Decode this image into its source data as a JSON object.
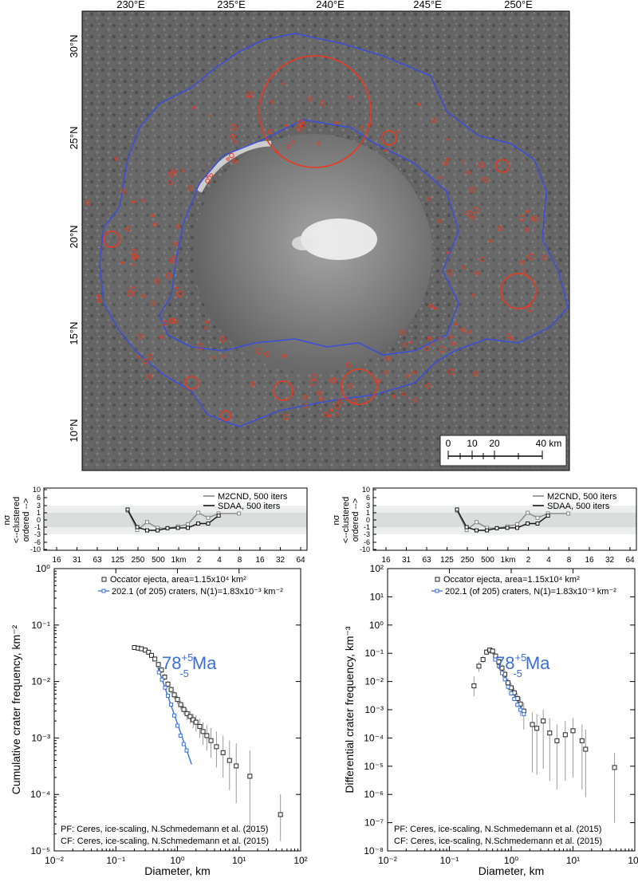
{
  "map": {
    "lon_labels": [
      "230°E",
      "235°E",
      "240°E",
      "245°E",
      "250°E"
    ],
    "lat_labels": [
      "30°N",
      "25°N",
      "20°N",
      "15°N",
      "10°N"
    ],
    "scalebar": {
      "labels": [
        "0",
        "10",
        "20",
        "40 km"
      ]
    },
    "colors": {
      "boundary": "#3b4fd6",
      "crater": "#e83a1e",
      "surface_dark": "#4a4a4a",
      "surface_light": "#8c8c8c",
      "bright_spot": "#f2f2f2"
    }
  },
  "chart_data": [
    {
      "type": "line",
      "panel": "randomness-left",
      "ylabel_lines": [
        "nσ",
        "<--clustered",
        "ordered -->"
      ],
      "x_ticks": [
        "16",
        "31",
        "63",
        "125",
        "250",
        "500",
        "1km",
        "2",
        "4",
        "8",
        "16",
        "32",
        "64"
      ],
      "y_ticks": [
        "10",
        "6",
        "3",
        "1",
        "0",
        "-1",
        "-3",
        "-6",
        "-10"
      ],
      "legend": [
        "M2CND, 500 iters",
        "SDAA, 500 iters"
      ],
      "series": [
        {
          "name": "M2CND, 500 iters",
          "color": "#888888",
          "x": [
            0.18,
            0.25,
            0.35,
            0.5,
            0.7,
            1.0,
            1.4,
            2.0,
            2.8,
            4.0,
            8.0
          ],
          "y": [
            1.6,
            -1.8,
            -0.3,
            -1.2,
            -1.3,
            -0.9,
            -0.6,
            1.0,
            0.3,
            0.9,
            0.9
          ]
        },
        {
          "name": "SDAA, 500 iters",
          "color": "#111111",
          "x": [
            0.18,
            0.25,
            0.35,
            0.5,
            0.7,
            1.0,
            1.4,
            2.0,
            2.8,
            4.0
          ],
          "y": [
            1.9,
            -1.0,
            -1.9,
            -1.9,
            -1.3,
            -1.2,
            -1.2,
            -0.5,
            -0.5,
            0.6
          ]
        }
      ]
    },
    {
      "type": "line",
      "panel": "randomness-right",
      "ylabel_lines": [
        "nσ",
        "<--clustered",
        "ordered -->"
      ],
      "x_ticks": [
        "16",
        "31",
        "63",
        "125",
        "250",
        "500",
        "1km",
        "2",
        "4",
        "8",
        "16",
        "32",
        "64"
      ],
      "y_ticks": [
        "10",
        "6",
        "3",
        "1",
        "0",
        "-1",
        "-3",
        "-6",
        "-10"
      ],
      "legend": [
        "M2CND, 500 iters",
        "SDAA, 500 iters"
      ],
      "series": [
        {
          "name": "M2CND, 500 iters",
          "color": "#888888",
          "x": [
            0.18,
            0.25,
            0.35,
            0.5,
            0.7,
            1.0,
            1.4,
            2.0,
            2.8,
            4.0,
            8.0
          ],
          "y": [
            1.6,
            -1.8,
            -0.3,
            -1.2,
            -1.3,
            -0.9,
            -0.6,
            1.0,
            0.3,
            0.9,
            0.9
          ]
        },
        {
          "name": "SDAA, 500 iters",
          "color": "#111111",
          "x": [
            0.18,
            0.25,
            0.35,
            0.5,
            0.7,
            1.0,
            1.4,
            2.0,
            2.8,
            4.0
          ],
          "y": [
            1.9,
            -1.0,
            -1.9,
            -1.9,
            -1.3,
            -1.2,
            -1.2,
            -0.5,
            -0.5,
            0.6
          ]
        }
      ]
    },
    {
      "type": "scatter",
      "panel": "cumulative",
      "xlabel": "Diameter, km",
      "ylabel": "Cumulative crater frequency, km⁻²",
      "log_x": true,
      "log_y": true,
      "xlim": [
        0.01,
        100
      ],
      "ylim": [
        1e-05,
        1
      ],
      "x_ticks": [
        "10⁻²",
        "10⁻¹",
        "10⁰",
        "10¹",
        "10²"
      ],
      "y_ticks": [
        "10⁰",
        "10⁻¹",
        "10⁻²",
        "10⁻³",
        "10⁻⁴",
        "10⁻⁵"
      ],
      "legend": [
        "Occator ejecta, area=1.15x10⁴ km²",
        "202.1 (of 205) craters, N(1)=1.83x10⁻³ km⁻²"
      ],
      "age_label": {
        "base": "78",
        "sup": "+5",
        "sub": "-5",
        "unit": "Ma"
      },
      "footer": [
        "PF: Ceres, ice-scaling, N.Schmedemann et al. (2015)",
        "CF: Ceres, ice-scaling, N.Schmedemann et al. (2015)"
      ],
      "colors": {
        "ejecta": "#222222",
        "fit": "#3a6fd8",
        "error": "#9a9a9a"
      },
      "series": [
        {
          "name": "Occator ejecta, area=1.15x10⁴ km²",
          "x": [
            0.2,
            0.23,
            0.26,
            0.3,
            0.34,
            0.38,
            0.43,
            0.49,
            0.55,
            0.62,
            0.7,
            0.79,
            0.89,
            1.0,
            1.13,
            1.27,
            1.43,
            1.61,
            1.8,
            2.0,
            2.3,
            2.6,
            3.0,
            3.5,
            4.3,
            5.5,
            7.0,
            9.0,
            15.0,
            47.0
          ],
          "y": [
            0.04,
            0.039,
            0.038,
            0.036,
            0.033,
            0.029,
            0.025,
            0.02,
            0.016,
            0.012,
            0.009,
            0.0072,
            0.0058,
            0.0048,
            0.0039,
            0.0032,
            0.0027,
            0.0024,
            0.0021,
            0.0019,
            0.0016,
            0.0013,
            0.0011,
            0.0009,
            0.0007,
            0.00055,
            0.0004,
            0.00032,
            0.00021,
            4.4e-05
          ],
          "err_hi": [
            0.042,
            0.041,
            0.04,
            0.038,
            0.035,
            0.031,
            0.027,
            0.022,
            0.018,
            0.0135,
            0.0102,
            0.0082,
            0.0067,
            0.0056,
            0.0046,
            0.0038,
            0.0033,
            0.003,
            0.0027,
            0.0025,
            0.0022,
            0.0019,
            0.0017,
            0.0015,
            0.0013,
            0.0011,
            0.0009,
            0.0008,
            0.0006,
            0.0001
          ],
          "err_lo": [
            0.038,
            0.037,
            0.036,
            0.034,
            0.031,
            0.027,
            0.023,
            0.018,
            0.014,
            0.0105,
            0.0078,
            0.0062,
            0.0049,
            0.004,
            0.0032,
            0.0026,
            0.0021,
            0.0018,
            0.0015,
            0.0013,
            0.001,
            0.00075,
            0.0006,
            0.00045,
            0.0003,
            0.0002,
            0.00012,
            7e-05,
            2e-05,
            1.5e-05
          ]
        },
        {
          "name": "202.1 (of 205) craters, N(1)=1.83x10⁻³ km⁻²",
          "x": [
            0.5,
            0.56,
            0.63,
            0.7,
            0.79,
            0.89,
            1.0,
            1.12,
            1.26,
            1.41
          ],
          "y": [
            0.0145,
            0.0108,
            0.0078,
            0.0056,
            0.0039,
            0.0025,
            0.00165,
            0.0011,
            0.00078,
            0.0006
          ]
        }
      ],
      "fit_line": {
        "x": [
          0.48,
          1.7
        ],
        "y": [
          0.018,
          0.00034
        ]
      }
    },
    {
      "type": "scatter",
      "panel": "differential",
      "xlabel": "Diameter, km",
      "ylabel": "Differential crater frequency, km⁻³",
      "log_x": true,
      "log_y": true,
      "xlim": [
        0.01,
        100
      ],
      "ylim": [
        1e-08,
        100
      ],
      "x_ticks": [
        "10⁻²",
        "10⁻¹",
        "10⁰",
        "10¹",
        "10²"
      ],
      "y_ticks": [
        "10²",
        "10¹",
        "10⁰",
        "10⁻¹",
        "10⁻²",
        "10⁻³",
        "10⁻⁴",
        "10⁻⁵",
        "10⁻⁶",
        "10⁻⁷",
        "10⁻⁸"
      ],
      "legend": [
        "Occator ejecta, area=1.15x10⁴ km²",
        "202.1 (of 205) craters, N(1)=1.83x10⁻³ km⁻²"
      ],
      "age_label": {
        "base": "78",
        "sup": "+5",
        "sub": "-5",
        "unit": "Ma"
      },
      "footer": [
        "PF: Ceres, ice-scaling, N.Schmedemann et al. (2015)",
        "CF: Ceres, ice-scaling, N.Schmedemann et al. (2015)"
      ],
      "colors": {
        "ejecta": "#222222",
        "fit": "#3a6fd8",
        "error": "#9a9a9a"
      },
      "series": [
        {
          "name": "Occator ejecta, area=1.15x10⁴ km²",
          "x": [
            0.25,
            0.3,
            0.35,
            0.4,
            0.45,
            0.5,
            0.56,
            0.63,
            0.71,
            0.79,
            0.89,
            1.0,
            1.12,
            1.26,
            1.41,
            1.6,
            2.2,
            2.6,
            3.3,
            4.2,
            5.5,
            7.5,
            10.0,
            14.0,
            16.0,
            47.0
          ],
          "y": [
            0.007,
            0.035,
            0.06,
            0.11,
            0.13,
            0.12,
            0.08,
            0.05,
            0.03,
            0.018,
            0.009,
            0.006,
            0.004,
            0.0025,
            0.0016,
            0.0009,
            0.0003,
            0.00022,
            0.0004,
            0.00015,
            8e-05,
            0.00013,
            0.00018,
            8e-05,
            4e-05,
            9e-06
          ],
          "err_hi": [
            0.015,
            0.05,
            0.08,
            0.14,
            0.16,
            0.15,
            0.1,
            0.065,
            0.04,
            0.025,
            0.013,
            0.009,
            0.006,
            0.004,
            0.0028,
            0.0018,
            0.0008,
            0.0007,
            0.001,
            0.0005,
            0.0003,
            0.0004,
            0.0005,
            0.0003,
            0.0002,
            3e-05
          ],
          "err_lo": [
            0.003,
            0.022,
            0.045,
            0.085,
            0.1,
            0.09,
            0.06,
            0.036,
            0.02,
            0.012,
            0.005,
            0.0032,
            0.002,
            0.0012,
            0.0006,
            0.0002,
            6e-06,
            5e-06,
            8e-06,
            3e-06,
            1.5e-06,
            3e-06,
            4e-06,
            1.5e-06,
            8e-07,
            1e-07
          ]
        },
        {
          "name": "202.1 (of 205) craters, N(1)=1.83x10⁻³ km⁻²",
          "x": [
            0.55,
            0.63,
            0.71,
            0.79,
            0.89,
            1.0,
            1.12,
            1.26,
            1.41,
            1.6
          ],
          "y": [
            0.06,
            0.035,
            0.02,
            0.012,
            0.0065,
            0.0038,
            0.0024,
            0.0015,
            0.001,
            0.0007
          ]
        }
      ],
      "fit_line": {
        "x": [
          0.48,
          1.7
        ],
        "y": [
          0.14,
          0.0006
        ]
      }
    }
  ]
}
